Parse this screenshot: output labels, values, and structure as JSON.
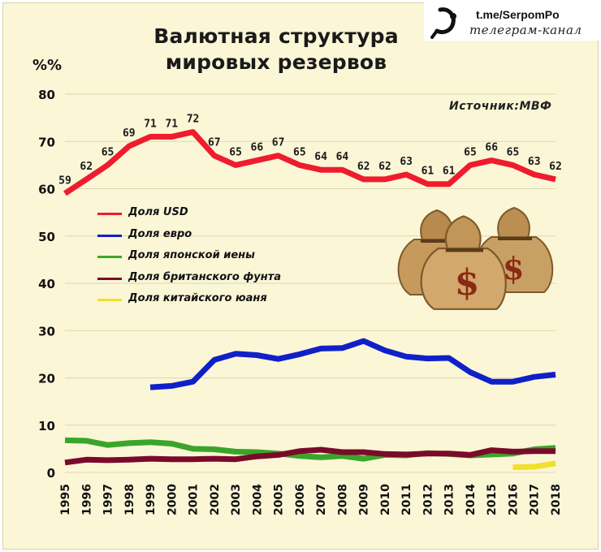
{
  "title_line1": "Валютная структура",
  "title_line2": "мировых резервов",
  "brand": {
    "link": "t.me/SerpomPo",
    "subtitle": "телеграм-канал"
  },
  "source": "Источник:МВФ",
  "colors": {
    "usd": "#ee1c2e",
    "eur": "#1020c8",
    "jpy": "#3aa52a",
    "gbp": "#7a0a2a",
    "cny": "#f2e02a",
    "background": "#fbf6d6"
  },
  "chart_data": {
    "type": "line",
    "title": "Валютная структура мировых резервов",
    "ylabel": "%%",
    "ylim": [
      0,
      80
    ],
    "yticks": [
      0,
      10,
      20,
      30,
      40,
      50,
      60,
      70,
      80
    ],
    "grid": true,
    "legend_position": "left",
    "x": [
      1995,
      1996,
      1997,
      1998,
      1999,
      2000,
      2001,
      2002,
      2003,
      2004,
      2005,
      2006,
      2007,
      2008,
      2009,
      2010,
      2011,
      2012,
      2013,
      2014,
      2015,
      2016,
      2017,
      2018
    ],
    "series": [
      {
        "name": "Доля USD",
        "key": "usd",
        "values": [
          59,
          62,
          65,
          69,
          71,
          71,
          72,
          67,
          65,
          66,
          67,
          65,
          64,
          64,
          62,
          62,
          63,
          61,
          61,
          65,
          66,
          65,
          63,
          62
        ],
        "labels": [
          "59",
          "62",
          "65",
          "69",
          "71",
          "71",
          "72",
          "67",
          "65",
          "66",
          "67",
          "65",
          "64",
          "64",
          "62",
          "62",
          "63",
          "61",
          "61",
          "65",
          "66",
          "65",
          "63",
          "62"
        ]
      },
      {
        "name": "Доля евро",
        "key": "eur",
        "values": [
          null,
          null,
          null,
          null,
          18,
          18.3,
          19.2,
          23.8,
          25.1,
          24.8,
          24.0,
          25.0,
          26.2,
          26.3,
          27.8,
          25.8,
          24.5,
          24.1,
          24.2,
          21.2,
          19.2,
          19.2,
          20.2,
          20.7
        ]
      },
      {
        "name": "Доля японской иены",
        "key": "jpy",
        "values": [
          6.8,
          6.7,
          5.8,
          6.2,
          6.4,
          6.1,
          5.0,
          4.9,
          4.4,
          4.3,
          4.0,
          3.5,
          3.2,
          3.5,
          2.9,
          3.7,
          3.6,
          4.1,
          3.9,
          3.6,
          3.8,
          4.0,
          4.9,
          5.2
        ]
      },
      {
        "name": "Доля британского фунта",
        "key": "gbp",
        "values": [
          2.1,
          2.7,
          2.6,
          2.7,
          2.9,
          2.8,
          2.8,
          2.9,
          2.8,
          3.4,
          3.7,
          4.5,
          4.8,
          4.3,
          4.3,
          3.9,
          3.8,
          4.0,
          4.0,
          3.7,
          4.7,
          4.4,
          4.5,
          4.5
        ]
      },
      {
        "name": "Доля китайского юаня",
        "key": "cny",
        "values": [
          null,
          null,
          null,
          null,
          null,
          null,
          null,
          null,
          null,
          null,
          null,
          null,
          null,
          null,
          null,
          null,
          null,
          null,
          null,
          null,
          null,
          1.1,
          1.2,
          1.9
        ]
      }
    ]
  }
}
